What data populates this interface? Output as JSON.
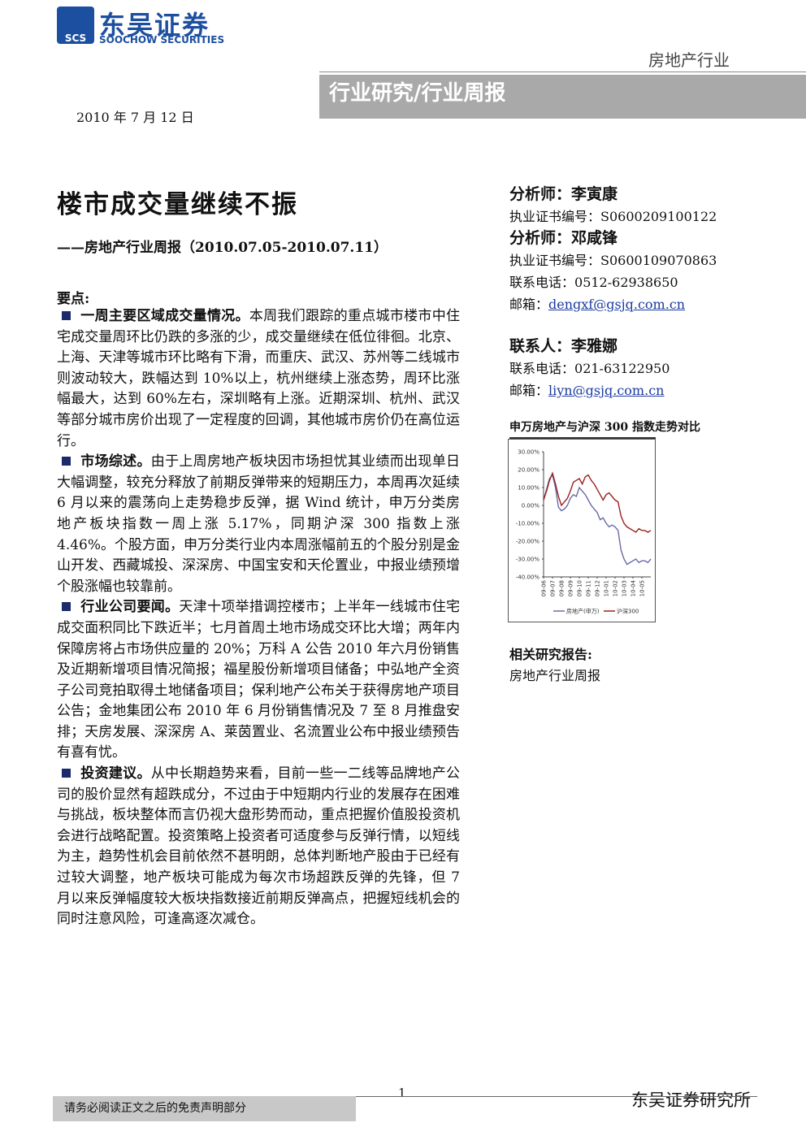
{
  "header": {
    "logo_mark": "SCS",
    "logo_cn": "东吴证券",
    "logo_en": "SOOCHOW SECURITIES",
    "sector": "房地产行业",
    "banner": "行业研究/行业周报",
    "date": "2010 年 7 月 12 日"
  },
  "title": "楼市成交量继续不振",
  "subtitle": "——房地产行业周报（2010.07.05-2010.07.11）",
  "key_points": {
    "heading": "要点:",
    "paragraphs": [
      {
        "lead": "一周主要区域成交量情况。",
        "body": "本周我们跟踪的重点城市楼市中住宅成交量周环比仍跌的多涨的少，成交量继续在低位徘徊。北京、上海、天津等城市环比略有下滑，而重庆、武汉、苏州等二线城市则波动较大，跌幅达到 10%以上，杭州继续上涨态势，周环比涨幅最大，达到 60%左右，深圳略有上涨。近期深圳、杭州、武汉等部分城市房价出现了一定程度的回调，其他城市房价仍在高位运行。"
      },
      {
        "lead": "市场综述。",
        "body": "由于上周房地产板块因市场担忧其业绩而出现单日大幅调整，较充分释放了前期反弹带来的短期压力，本周再次延续 6 月以来的震荡向上走势稳步反弹，据 Wind 统计，申万分类房地产板块指数一周上涨 5.17%，同期沪深 300 指数上涨 4.46%。个股方面，申万分类行业内本周涨幅前五的个股分别是金山开发、西藏城投、深深房、中国宝安和天伦置业，中报业绩预增个股涨幅也较靠前。"
      },
      {
        "lead": "行业公司要闻。",
        "body": "天津十项举措调控楼市；上半年一线城市住宅成交面积同比下跌近半；七月首周土地市场成交环比大增；两年内保障房将占市场供应量的 20%；万科 A 公告 2010 年六月份销售及近期新增项目情况简报；福星股份新增项目储备；中弘地产全资子公司竞拍取得土地储备项目；保利地产公布关于获得房地产项目公告；金地集团公布 2010 年 6 月份销售情况及 7 至 8 月推盘安排；天房发展、深深房 A、莱茵置业、名流置业公布中报业绩预告有喜有忧。"
      },
      {
        "lead": "投资建议。",
        "body": "从中长期趋势来看，目前一些一二线等品牌地产公司的股价显然有超跌成分，不过由于中短期内行业的发展存在困难与挑战，板块整体而言仍视大盘形势而动，重点把握价值股投资机会进行战略配置。投资策略上投资者可适度参与反弹行情，以短线为主，趋势性机会目前依然不甚明朗，总体判断地产股由于已经有过较大调整，地产板块可能成为每次市场超跌反弹的先锋，但 7 月以来反弹幅度较大板块指数接近前期反弹高点，把握短线机会的同时注意风险，可逢高逐次减仓。"
      }
    ]
  },
  "analysts": [
    {
      "role": "分析师：",
      "name": "李寅康",
      "cert_label": "执业证书编号：",
      "cert": "S0600209100122"
    },
    {
      "role": "分析师：",
      "name": "邓咸锋",
      "cert_label": "执业证书编号：",
      "cert": "S0600109070863",
      "phone_label": "联系电话：",
      "phone": "0512-62938650",
      "email_label": "邮箱：",
      "email": "dengxf@gsjq.com.cn"
    }
  ],
  "contact": {
    "role": "联系人：",
    "name": "李雅娜",
    "phone_label": "联系电话：",
    "phone": "021-63122950",
    "email_label": "邮箱：",
    "email": "liyn@gsjq.com.cn"
  },
  "chart_title": "申万房地产与沪深 300 指数走势对比",
  "chart_data": {
    "type": "line",
    "categories": [
      "09-06",
      null,
      null,
      "09-07",
      null,
      null,
      "09-08",
      null,
      null,
      "09-09",
      null,
      null,
      "09-10",
      null,
      null,
      "09-11",
      null,
      null,
      "09-12",
      null,
      null,
      "10-01",
      null,
      null,
      "10-02",
      null,
      null,
      "10-03",
      null,
      null,
      "10-04",
      null,
      null,
      "10-05",
      null,
      null,
      null
    ],
    "series": [
      {
        "name": "房地产(申万)",
        "color": "#6a6aa8",
        "values": [
          3,
          9,
          15,
          17,
          10,
          -1,
          -3,
          -2,
          0,
          4,
          6,
          5,
          10,
          8,
          6,
          3,
          0,
          -2,
          -4,
          -8,
          -7,
          -10,
          -12,
          -11,
          -12,
          -14,
          -25,
          -30,
          -33,
          -32,
          -31,
          -30,
          -32,
          -31,
          -31,
          -32,
          -30
        ]
      },
      {
        "name": "沪深300",
        "color": "#9b2020",
        "values": [
          3,
          8,
          14,
          18,
          12,
          5,
          0,
          2,
          4,
          8,
          13,
          14,
          15,
          12,
          16,
          17,
          14,
          12,
          9,
          6,
          3,
          6,
          7,
          5,
          3,
          2,
          -6,
          -10,
          -12,
          -13,
          -14,
          -15,
          -13,
          -14,
          -14,
          -15,
          -14
        ]
      }
    ],
    "ylim": [
      -40,
      30
    ],
    "yticks": [
      {
        "value": 30,
        "label": "30.00%"
      },
      {
        "value": 20,
        "label": "20.00%"
      },
      {
        "value": 10,
        "label": "10.00%"
      },
      {
        "value": 0,
        "label": "0.00%"
      },
      {
        "value": -10,
        "label": "-10.00%"
      },
      {
        "value": -20,
        "label": "-20.00%"
      },
      {
        "value": -30,
        "label": "-30.00%"
      },
      {
        "value": -40,
        "label": "-40.00%"
      }
    ],
    "grid": false,
    "legend": "bottom"
  },
  "related": {
    "heading": "相关研究报告:",
    "items": [
      "房地产行业周报"
    ]
  },
  "footer": {
    "page": "1",
    "institute": "东吴证券研究所",
    "disclaimer": "请务必阅读正文之后的免责声明部分"
  }
}
